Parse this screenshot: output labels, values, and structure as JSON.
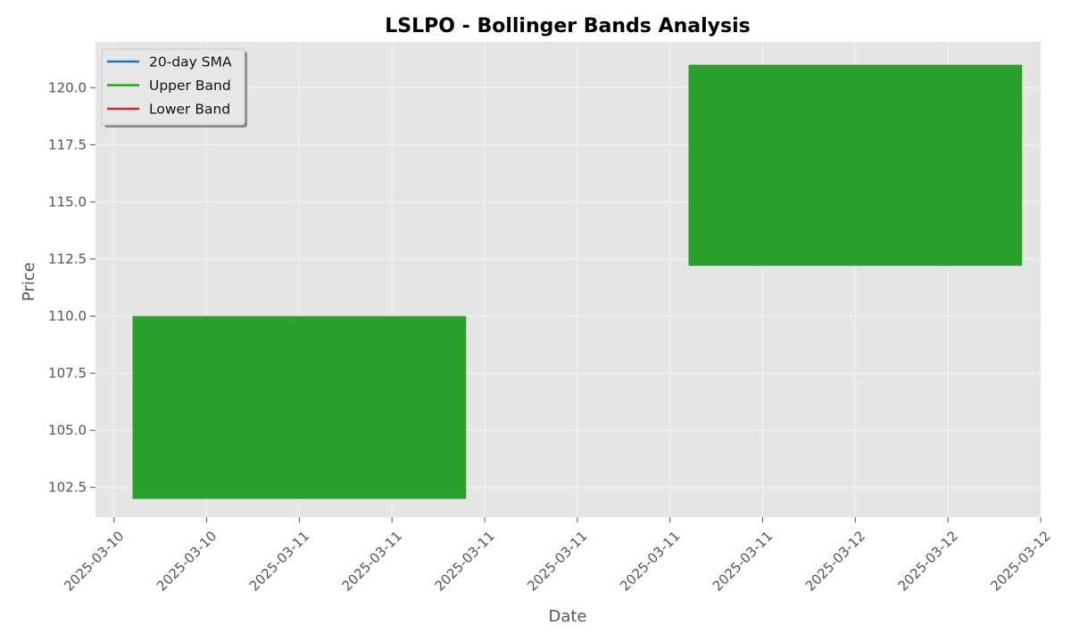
{
  "chart_data": {
    "type": "area",
    "title": "LSLPO - Bollinger Bands Analysis",
    "xlabel": "Date",
    "ylabel": "Price",
    "xlim": [
      -0.2,
      10.0
    ],
    "ylim": [
      101.2,
      122.0
    ],
    "x_ticks": [
      "2025-03-10",
      "2025-03-10",
      "2025-03-11",
      "2025-03-11",
      "2025-03-11",
      "2025-03-11",
      "2025-03-11",
      "2025-03-11",
      "2025-03-12",
      "2025-03-12",
      "2025-03-12"
    ],
    "y_ticks": [
      102.5,
      105.0,
      107.5,
      110.0,
      112.5,
      115.0,
      117.5,
      120.0
    ],
    "y_tick_labels": [
      "102.5",
      "105.0",
      "107.5",
      "110.0",
      "112.5",
      "115.0",
      "117.5",
      "120.0"
    ],
    "grid": true,
    "legend_position": "top-left",
    "legend": [
      {
        "name": "20-day SMA",
        "color": "#1f77b4"
      },
      {
        "name": "Upper Band",
        "color": "#2ca02c"
      },
      {
        "name": "Lower Band",
        "color": "#d62728"
      }
    ],
    "band_fill_color": "#2ca02c",
    "bands": [
      {
        "x_start": 0.2,
        "x_end": 3.8,
        "lower": 102.0,
        "upper": 110.0
      },
      {
        "x_start": 6.2,
        "x_end": 9.8,
        "lower": 112.2,
        "upper": 121.0
      }
    ]
  }
}
